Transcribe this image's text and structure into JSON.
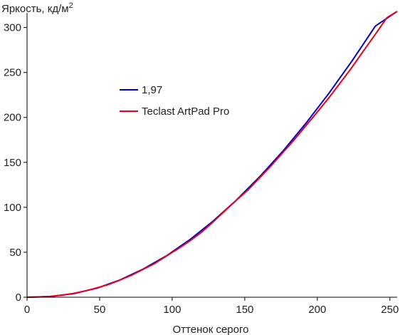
{
  "chart_data": {
    "type": "line",
    "ylabel": "Яркость, кд/м",
    "ylabel_sup": "2",
    "xlabel": "Оттенок серого",
    "xlim": [
      0,
      255
    ],
    "ylim": [
      0,
      310
    ],
    "xticks": [
      0,
      50,
      100,
      150,
      200,
      250
    ],
    "yticks": [
      0,
      50,
      100,
      150,
      200,
      250,
      300
    ],
    "grid": false,
    "legend_position": "upper-left-inside",
    "series": [
      {
        "name": "1,97",
        "color": "#0000c8",
        "x": [
          0,
          16,
          32,
          48,
          64,
          80,
          96,
          112,
          128,
          144,
          160,
          176,
          192,
          208,
          224,
          240,
          255
        ],
        "y": [
          0,
          0.8,
          4.0,
          10.0,
          19.2,
          31.3,
          46.1,
          63.8,
          84.4,
          107.7,
          133.6,
          162.0,
          193.2,
          226.9,
          263.1,
          301.6,
          340.0
        ]
      },
      {
        "name": "Teclast ArtPad Pro",
        "color": "#e8001c",
        "x": [
          0,
          8,
          16,
          24,
          32,
          40,
          48,
          56,
          64,
          72,
          80,
          88,
          96,
          104,
          112,
          120,
          128,
          136,
          144,
          152,
          160,
          168,
          176,
          184,
          192,
          200,
          208,
          216,
          224,
          232,
          240,
          248,
          255
        ],
        "y": [
          0,
          0.3,
          1.0,
          2.3,
          4.3,
          7.0,
          10.4,
          14.0,
          19.0,
          24.5,
          31.0,
          37.6,
          45.8,
          53.8,
          62.5,
          72.0,
          83.5,
          95.5,
          107.5,
          119.0,
          132.5,
          146.0,
          160.5,
          175.0,
          190.5,
          206.0,
          222.0,
          239.0,
          256.0,
          274.5,
          292.5,
          311.0,
          328.0
        ]
      }
    ]
  }
}
